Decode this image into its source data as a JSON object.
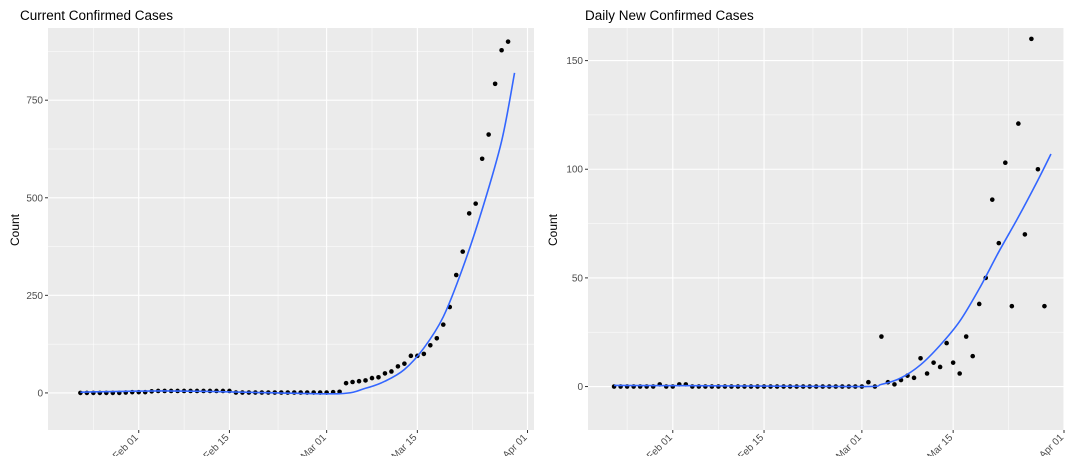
{
  "charts": [
    {
      "title": "Current Confirmed Cases",
      "ylabel": "Count",
      "xlabel": "",
      "colors": {
        "panel": "#ebebeb",
        "grid": "#ffffff",
        "points": "#000000",
        "trend": "#3366ff"
      },
      "chart_data": {
        "type": "scatter",
        "title": "Current Confirmed Cases",
        "xlabel": "",
        "ylabel": "Count",
        "xlim": [
          "2020-01-18",
          "2020-04-02"
        ],
        "ylim": [
          -95,
          935
        ],
        "x_ticks": [
          {
            "date": "2020-02-01",
            "label": "Feb 01"
          },
          {
            "date": "2020-02-15",
            "label": "Feb 15"
          },
          {
            "date": "2020-03-01",
            "label": "Mar 01"
          },
          {
            "date": "2020-03-15",
            "label": "Mar 15"
          },
          {
            "date": "2020-04-01",
            "label": "Apr 01"
          }
        ],
        "y_ticks": [
          0,
          250,
          500,
          750
        ],
        "grid": true,
        "points": {
          "start_date": "2020-01-23",
          "values": [
            0,
            0,
            0,
            0,
            0,
            0,
            0,
            1,
            2,
            2,
            2,
            4,
            5,
            5,
            5,
            5,
            5,
            5,
            5,
            5,
            5,
            5,
            5,
            5,
            1,
            1,
            1,
            1,
            1,
            1,
            1,
            1,
            1,
            1,
            1,
            1,
            1,
            1,
            1,
            2,
            3,
            25,
            28,
            30,
            32,
            38,
            40,
            50,
            55,
            68,
            75,
            95,
            95,
            100,
            122,
            140,
            175,
            220,
            302,
            362,
            460,
            485,
            600,
            662,
            792,
            878,
            900
          ]
        },
        "trend": {
          "type": "smooth",
          "points": [
            [
              "2020-01-23",
              2
            ],
            [
              "2020-02-05",
              5
            ],
            [
              "2020-02-20",
              1
            ],
            [
              "2020-03-03",
              -2
            ],
            [
              "2020-03-07",
              12
            ],
            [
              "2020-03-10",
              30
            ],
            [
              "2020-03-13",
              60
            ],
            [
              "2020-03-16",
              115
            ],
            [
              "2020-03-19",
              195
            ],
            [
              "2020-03-22",
              320
            ],
            [
              "2020-03-25",
              470
            ],
            [
              "2020-03-28",
              645
            ],
            [
              "2020-03-30",
              820
            ]
          ]
        }
      }
    },
    {
      "title": "Daily New Confirmed Cases",
      "ylabel": "Count",
      "xlabel": "",
      "colors": {
        "panel": "#ebebeb",
        "grid": "#ffffff",
        "points": "#000000",
        "trend": "#3366ff"
      },
      "chart_data": {
        "type": "scatter",
        "title": "Daily New Confirmed Cases",
        "xlabel": "",
        "ylabel": "Count",
        "xlim": [
          "2020-01-19",
          "2020-04-01"
        ],
        "ylim": [
          -20,
          165
        ],
        "x_ticks": [
          {
            "date": "2020-02-01",
            "label": "Feb 01"
          },
          {
            "date": "2020-02-15",
            "label": "Feb 15"
          },
          {
            "date": "2020-03-01",
            "label": "Mar 01"
          },
          {
            "date": "2020-03-15",
            "label": "Mar 15"
          },
          {
            "date": "2020-04-01",
            "label": "Apr 01"
          }
        ],
        "y_ticks": [
          0,
          50,
          100,
          150
        ],
        "grid": true,
        "points": {
          "start_date": "2020-01-23",
          "values": [
            0,
            0,
            0,
            0,
            0,
            0,
            0,
            1,
            0,
            0,
            1,
            1,
            0,
            0,
            0,
            0,
            0,
            0,
            0,
            0,
            0,
            0,
            0,
            0,
            0,
            0,
            0,
            0,
            0,
            0,
            0,
            0,
            0,
            0,
            0,
            0,
            0,
            0,
            0,
            2,
            0,
            23,
            2,
            1,
            3,
            5,
            4,
            13,
            6,
            11,
            9,
            20,
            11,
            6,
            23,
            14,
            38,
            50,
            86,
            66,
            103,
            37,
            121,
            70,
            160,
            100,
            37
          ]
        },
        "trend": {
          "type": "smooth",
          "points": [
            [
              "2020-01-23",
              0.5
            ],
            [
              "2020-02-10",
              0.3
            ],
            [
              "2020-03-01",
              0
            ],
            [
              "2020-03-04",
              1
            ],
            [
              "2020-03-07",
              4
            ],
            [
              "2020-03-10",
              10
            ],
            [
              "2020-03-13",
              19
            ],
            [
              "2020-03-16",
              30
            ],
            [
              "2020-03-19",
              45
            ],
            [
              "2020-03-22",
              62
            ],
            [
              "2020-03-25",
              78
            ],
            [
              "2020-03-28",
              95
            ],
            [
              "2020-03-30",
              107
            ]
          ]
        }
      }
    }
  ]
}
